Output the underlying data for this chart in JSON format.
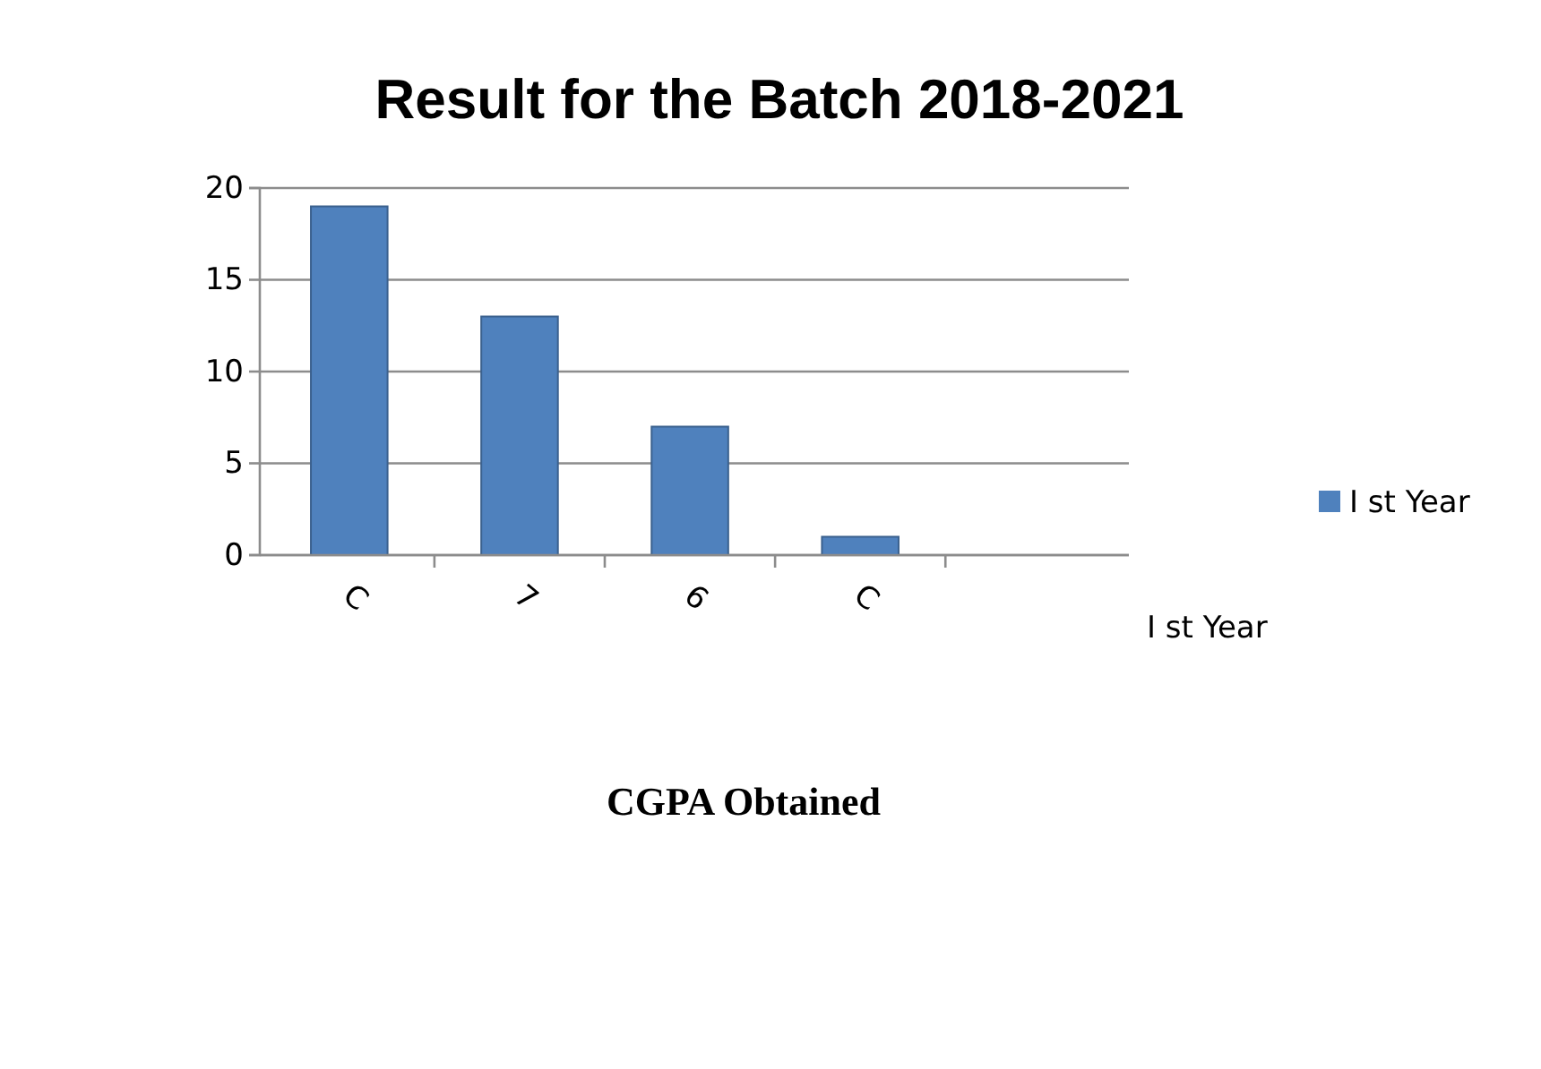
{
  "chart_data": {
    "type": "bar",
    "title": "Result for the Batch 2018-2021",
    "xlabel": "CGPA Obtained",
    "categories": [
      "C",
      "7",
      "6",
      "C"
    ],
    "series": [
      {
        "name": "I st Year",
        "color": "#4f81bd",
        "values": [
          19,
          13,
          7,
          1
        ]
      }
    ],
    "ylim": [
      0,
      20
    ],
    "yticks": [
      0,
      5,
      10,
      15,
      20
    ],
    "grid": "y",
    "legend": "right",
    "annotations": [
      "I st Year"
    ]
  }
}
